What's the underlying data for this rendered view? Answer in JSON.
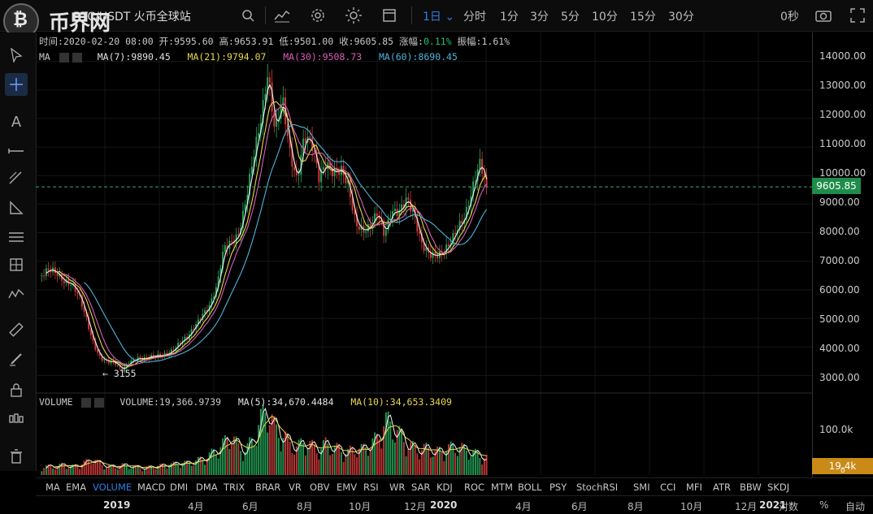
{
  "topbar": {
    "logo_glyph": "₿",
    "watermark": "币界网",
    "pair": "BTC/USDT  火币全球站",
    "intervals": [
      "1日 ⌄",
      "分时",
      "1分",
      "3分",
      "5分",
      "10分",
      "15分",
      "30分"
    ],
    "active_interval": "1日",
    "countdown": "0秒"
  },
  "info_row": {
    "time_label": "时间:",
    "time_value": "2020-02-20 08:00",
    "open_label": "开:",
    "open_value": "9595.60",
    "high_label": "高:",
    "high_value": "9653.91",
    "low_label": "低:",
    "low_value": "9501.00",
    "close_label": "收:",
    "close_value": "9605.85",
    "change_label": "涨幅:",
    "change_value": "0.11%",
    "amp_label": "振幅:",
    "amp_value": "1.61%"
  },
  "ma_row": {
    "label": "MA",
    "ma7": "MA(7):9890.45",
    "ma21": "MA(21):9794.07",
    "ma30": "MA(30):9508.73",
    "ma60": "MA(60):8690.45"
  },
  "low_marker": "← 3155",
  "price_axis": [
    "14000.00",
    "13000.00",
    "12000.00",
    "11000.00",
    "10000.00",
    "9000.00",
    "8000.00",
    "7000.00",
    "6000.00",
    "5000.00",
    "4000.00",
    "3000.00"
  ],
  "current_price": "9605.85",
  "volume": {
    "label": "VOLUME",
    "volume_value": "VOLUME:19,366.9739",
    "ma5": "MA(5):34,670.4484",
    "ma10": "MA(10):34,653.3409",
    "axis_label": "100.0k",
    "current_tag": "19.4k",
    "current_tag_sub": "0"
  },
  "indicators": [
    "MA",
    "EMA",
    "VOLUME",
    "MACD",
    "DMI",
    "DMA",
    "TRIX",
    "BRAR",
    "VR",
    "OBV",
    "EMV",
    "RSI",
    "WR",
    "SAR",
    "KDJ",
    "ROC",
    "MTM",
    "BOLL",
    "PSY",
    "StochRSI",
    "SMI",
    "CCI",
    "MFI",
    "ATR",
    "BBW",
    "SKDJ"
  ],
  "active_indicator": "VOLUME",
  "time_axis": [
    "2019",
    "4月",
    "6月",
    "8月",
    "10月",
    "12月",
    "2020",
    "4月",
    "6月",
    "8月",
    "10月",
    "12月",
    "2021"
  ],
  "axis_mode": {
    "log": "对数",
    "percent": "%",
    "auto": "自动"
  },
  "colors": {
    "up": "#26a65b",
    "down": "#d23b3b",
    "ma7": "#f2f2f2",
    "ma21": "#e8d84a",
    "ma30": "#d95db8",
    "ma60": "#4fb3d9",
    "accent": "#2f7fe0"
  },
  "chart_data": {
    "type": "candlestick",
    "ylim": [
      2500,
      14500
    ],
    "price_line": 9605.85,
    "series_close": [
      6500,
      6600,
      6550,
      6400,
      6300,
      5800,
      5000,
      4200,
      3700,
      3500,
      3400,
      3155,
      3500,
      3650,
      3550,
      3600,
      3700,
      3800,
      3900,
      4100,
      4300,
      4800,
      5200,
      5400,
      6000,
      7500,
      7800,
      8000,
      9000,
      10500,
      12000,
      13800,
      11500,
      12500,
      10800,
      10000,
      11500,
      11000,
      9800,
      10500,
      10300,
      10200,
      9500,
      8300,
      8200,
      8300,
      8600,
      7800,
      8800,
      8900,
      9200,
      8500,
      7600,
      7400,
      7300,
      7200,
      7500,
      8200,
      8700,
      9500,
      10300,
      9606
    ],
    "volume_values": [
      8,
      10,
      9,
      12,
      9,
      11,
      14,
      18,
      12,
      10,
      9,
      11,
      10,
      9,
      8,
      9,
      10,
      11,
      12,
      14,
      13,
      15,
      18,
      22,
      28,
      35,
      45,
      30,
      28,
      40,
      60,
      75,
      50,
      45,
      35,
      30,
      38,
      32,
      28,
      35,
      30,
      28,
      25,
      30,
      28,
      35,
      40,
      60,
      55,
      45,
      35,
      30,
      28,
      30,
      25,
      28,
      30,
      32,
      28,
      25,
      22,
      19
    ]
  }
}
